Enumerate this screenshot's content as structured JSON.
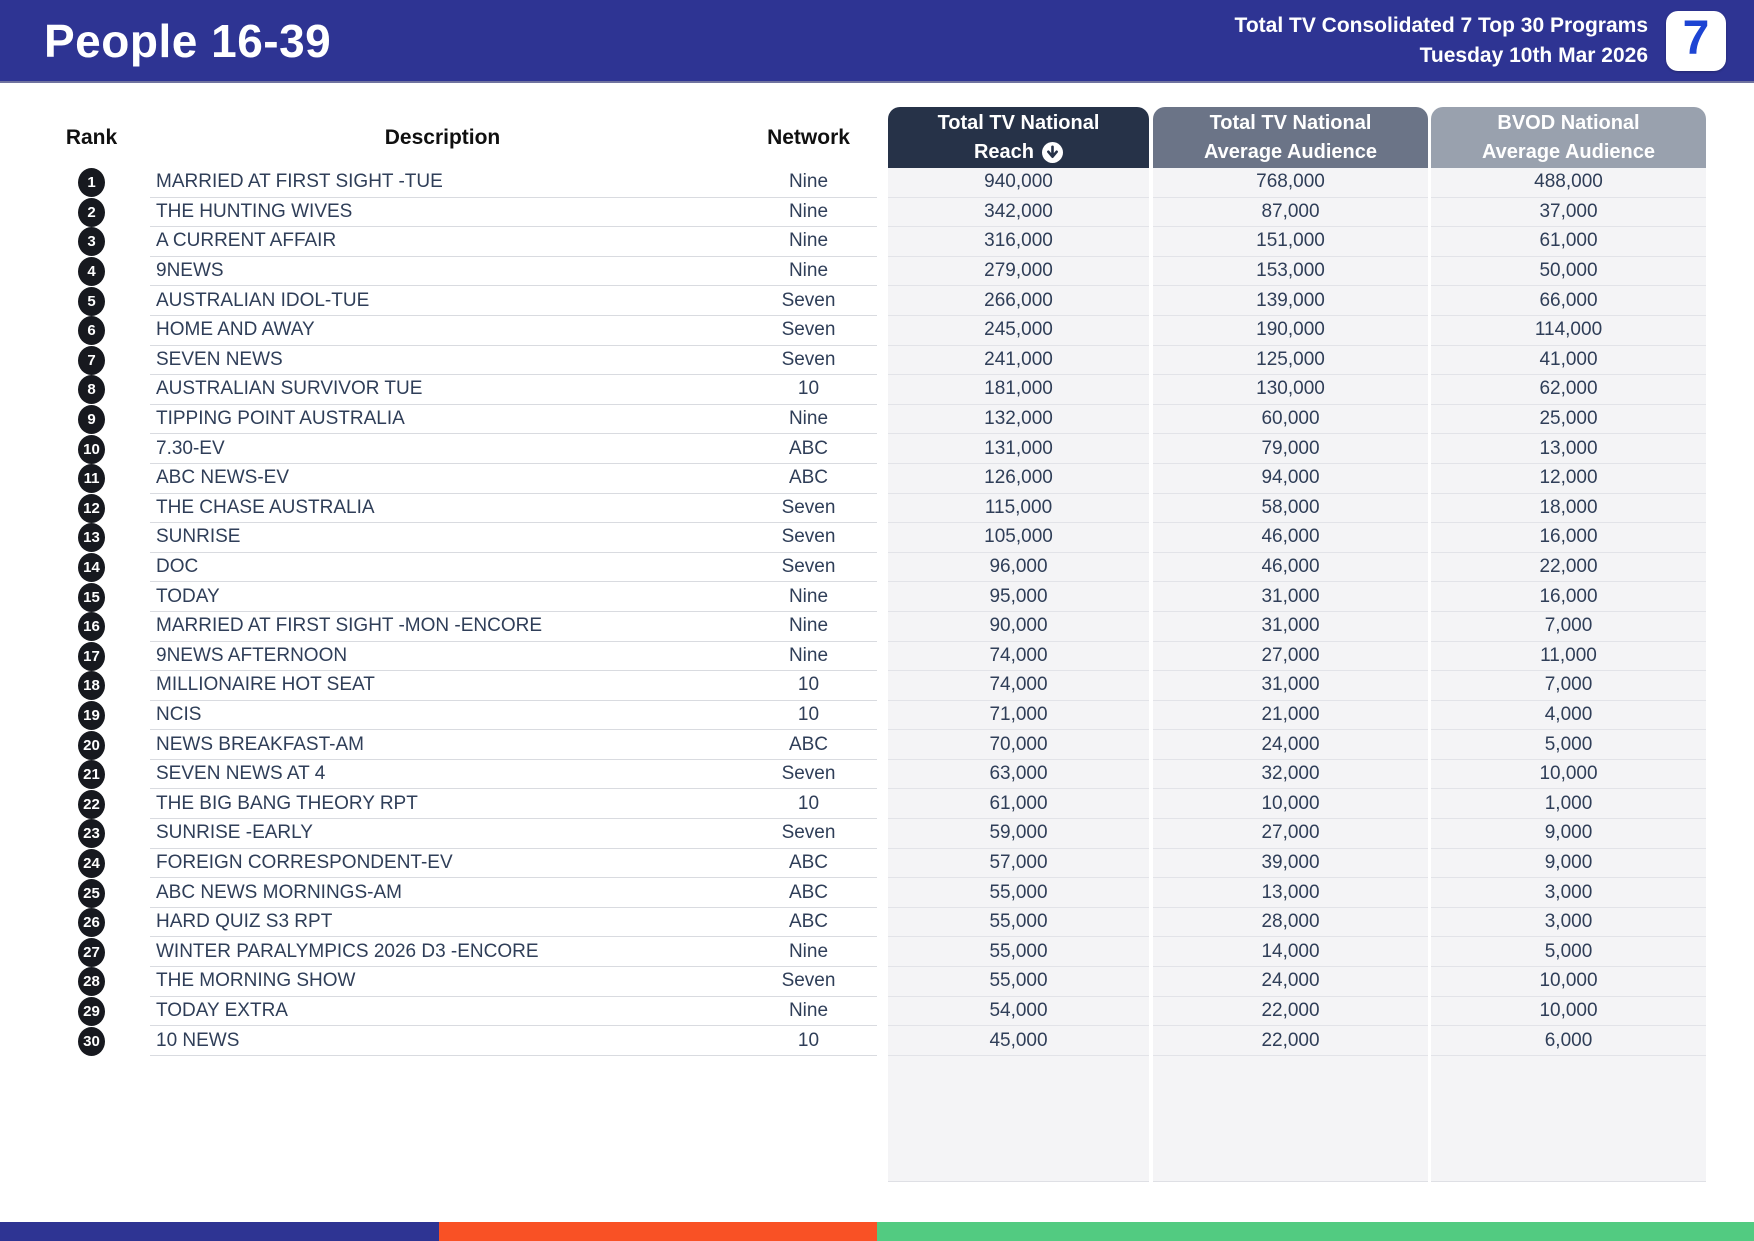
{
  "header": {
    "title": "People 16-39",
    "subtitle_line1": "Total TV Consolidated 7 Top 30 Programs",
    "subtitle_line2": "Tuesday 10th Mar 2026",
    "logo_text": "7"
  },
  "table": {
    "columns": {
      "rank": "Rank",
      "description": "Description",
      "network": "Network",
      "reach_line1": "Total TV National",
      "reach_line2": "Reach",
      "avg_line1": "Total TV National",
      "avg_line2": "Average Audience",
      "bvod_line1": "BVOD National",
      "bvod_line2": "Average Audience"
    },
    "rows": [
      {
        "rank": "1",
        "description": "MARRIED AT FIRST SIGHT -TUE",
        "network": "Nine",
        "reach": "940,000",
        "avg": "768,000",
        "bvod": "488,000"
      },
      {
        "rank": "2",
        "description": "THE HUNTING WIVES",
        "network": "Nine",
        "reach": "342,000",
        "avg": "87,000",
        "bvod": "37,000"
      },
      {
        "rank": "3",
        "description": "A CURRENT AFFAIR",
        "network": "Nine",
        "reach": "316,000",
        "avg": "151,000",
        "bvod": "61,000"
      },
      {
        "rank": "4",
        "description": "9NEWS",
        "network": "Nine",
        "reach": "279,000",
        "avg": "153,000",
        "bvod": "50,000"
      },
      {
        "rank": "5",
        "description": "AUSTRALIAN IDOL-TUE",
        "network": "Seven",
        "reach": "266,000",
        "avg": "139,000",
        "bvod": "66,000"
      },
      {
        "rank": "6",
        "description": "HOME AND AWAY",
        "network": "Seven",
        "reach": "245,000",
        "avg": "190,000",
        "bvod": "114,000"
      },
      {
        "rank": "7",
        "description": "SEVEN NEWS",
        "network": "Seven",
        "reach": "241,000",
        "avg": "125,000",
        "bvod": "41,000"
      },
      {
        "rank": "8",
        "description": "AUSTRALIAN SURVIVOR TUE",
        "network": "10",
        "reach": "181,000",
        "avg": "130,000",
        "bvod": "62,000"
      },
      {
        "rank": "9",
        "description": "TIPPING POINT AUSTRALIA",
        "network": "Nine",
        "reach": "132,000",
        "avg": "60,000",
        "bvod": "25,000"
      },
      {
        "rank": "10",
        "description": "7.30-EV",
        "network": "ABC",
        "reach": "131,000",
        "avg": "79,000",
        "bvod": "13,000"
      },
      {
        "rank": "11",
        "description": "ABC NEWS-EV",
        "network": "ABC",
        "reach": "126,000",
        "avg": "94,000",
        "bvod": "12,000"
      },
      {
        "rank": "12",
        "description": "THE CHASE AUSTRALIA",
        "network": "Seven",
        "reach": "115,000",
        "avg": "58,000",
        "bvod": "18,000"
      },
      {
        "rank": "13",
        "description": "SUNRISE",
        "network": "Seven",
        "reach": "105,000",
        "avg": "46,000",
        "bvod": "16,000"
      },
      {
        "rank": "14",
        "description": "DOC",
        "network": "Seven",
        "reach": "96,000",
        "avg": "46,000",
        "bvod": "22,000"
      },
      {
        "rank": "15",
        "description": "TODAY",
        "network": "Nine",
        "reach": "95,000",
        "avg": "31,000",
        "bvod": "16,000"
      },
      {
        "rank": "16",
        "description": "MARRIED AT FIRST SIGHT -MON -ENCORE",
        "network": "Nine",
        "reach": "90,000",
        "avg": "31,000",
        "bvod": "7,000"
      },
      {
        "rank": "17",
        "description": "9NEWS AFTERNOON",
        "network": "Nine",
        "reach": "74,000",
        "avg": "27,000",
        "bvod": "11,000"
      },
      {
        "rank": "18",
        "description": "MILLIONAIRE HOT SEAT",
        "network": "10",
        "reach": "74,000",
        "avg": "31,000",
        "bvod": "7,000"
      },
      {
        "rank": "19",
        "description": "NCIS",
        "network": "10",
        "reach": "71,000",
        "avg": "21,000",
        "bvod": "4,000"
      },
      {
        "rank": "20",
        "description": "NEWS BREAKFAST-AM",
        "network": "ABC",
        "reach": "70,000",
        "avg": "24,000",
        "bvod": "5,000"
      },
      {
        "rank": "21",
        "description": "SEVEN NEWS AT 4",
        "network": "Seven",
        "reach": "63,000",
        "avg": "32,000",
        "bvod": "10,000"
      },
      {
        "rank": "22",
        "description": "THE BIG BANG THEORY RPT",
        "network": "10",
        "reach": "61,000",
        "avg": "10,000",
        "bvod": "1,000"
      },
      {
        "rank": "23",
        "description": "SUNRISE -EARLY",
        "network": "Seven",
        "reach": "59,000",
        "avg": "27,000",
        "bvod": "9,000"
      },
      {
        "rank": "24",
        "description": "FOREIGN CORRESPONDENT-EV",
        "network": "ABC",
        "reach": "57,000",
        "avg": "39,000",
        "bvod": "9,000"
      },
      {
        "rank": "25",
        "description": "ABC NEWS MORNINGS-AM",
        "network": "ABC",
        "reach": "55,000",
        "avg": "13,000",
        "bvod": "3,000"
      },
      {
        "rank": "26",
        "description": "HARD QUIZ S3 RPT",
        "network": "ABC",
        "reach": "55,000",
        "avg": "28,000",
        "bvod": "3,000"
      },
      {
        "rank": "27",
        "description": "WINTER PARALYMPICS 2026 D3 -ENCORE",
        "network": "Nine",
        "reach": "55,000",
        "avg": "14,000",
        "bvod": "5,000"
      },
      {
        "rank": "28",
        "description": "THE MORNING SHOW",
        "network": "Seven",
        "reach": "55,000",
        "avg": "24,000",
        "bvod": "10,000"
      },
      {
        "rank": "29",
        "description": "TODAY EXTRA",
        "network": "Nine",
        "reach": "54,000",
        "avg": "22,000",
        "bvod": "10,000"
      },
      {
        "rank": "30",
        "description": "10 NEWS",
        "network": "10",
        "reach": "45,000",
        "avg": "22,000",
        "bvod": "6,000"
      }
    ]
  },
  "footer": {
    "stripe": [
      {
        "color": "#2e3493",
        "width_pct": 25
      },
      {
        "color": "#f95125",
        "width_pct": 25
      },
      {
        "color": "#52cb81",
        "width_pct": 50
      }
    ]
  },
  "colors": {
    "header_bar": "#2e3493",
    "reach_header": "#263248",
    "avg_header": "#6b7487",
    "bvod_header": "#99a1ae",
    "numeric_column_bg": "#f4f4f6",
    "rank_badge": "#17191f",
    "row_text": "#2f3e58",
    "logo_blue": "#1d44d3"
  }
}
